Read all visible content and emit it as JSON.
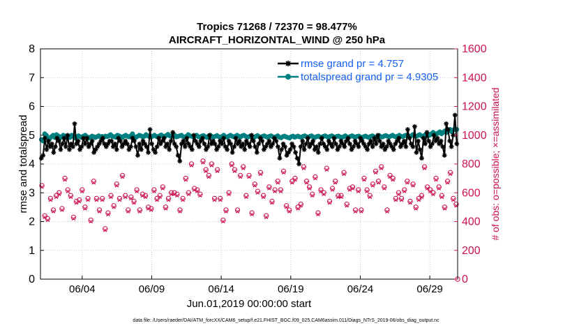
{
  "chart_data": {
    "type": "line",
    "title": "Tropics 71268 / 72370 = 98.477%",
    "subtitle": "AIRCRAFT_HORIZONTAL_WIND @ 250 hPa",
    "xlabel": "Jun.01,2019 00:00:00 start",
    "ylabel_left": "rmse and totalspread",
    "ylabel_right": "# of obs: o=possible; ×=assimilated",
    "ylim_left": [
      0,
      8
    ],
    "ylim_right": [
      0,
      1600
    ],
    "xlim_days": [
      1,
      31
    ],
    "xticks": [
      {
        "label": "06/04",
        "day": 4
      },
      {
        "label": "06/09",
        "day": 9
      },
      {
        "label": "06/14",
        "day": 14
      },
      {
        "label": "06/19",
        "day": 19
      },
      {
        "label": "06/24",
        "day": 24
      },
      {
        "label": "06/29",
        "day": 29
      }
    ],
    "yticks_left": [
      "0",
      "1",
      "2",
      "3",
      "4",
      "5",
      "6",
      "7",
      "8"
    ],
    "yticks_right": [
      "0",
      "200",
      "400",
      "600",
      "800",
      "1000",
      "1200",
      "1400",
      "1600"
    ],
    "legend": [
      {
        "name": "rmse grand pr = 4.757",
        "color": "#000000"
      },
      {
        "name": "totalspread grand pr = 4.9305",
        "color": "#008080"
      }
    ],
    "series": [
      {
        "name": "rmse",
        "axis": "left",
        "color": "#000000",
        "marker": "asterisk",
        "values": [
          4.2,
          4.3,
          4.9,
          4.5,
          4.8,
          4.6,
          4.7,
          4.4,
          4.6,
          4.9,
          4.8,
          4.5,
          4.7,
          4.9,
          4.6,
          5.0,
          4.5,
          4.7,
          4.6,
          5.4,
          4.7,
          4.8,
          4.5,
          4.6,
          4.9,
          4.7,
          4.9,
          4.6,
          4.7,
          4.8,
          4.4,
          4.5,
          4.6,
          4.7,
          4.8,
          4.9,
          4.7,
          4.6,
          4.7,
          4.8,
          4.8,
          4.6,
          4.7,
          4.5,
          4.9,
          4.8,
          4.6,
          4.7,
          4.8,
          4.7,
          4.5,
          4.6,
          4.9,
          4.8,
          4.6,
          4.3,
          4.7,
          4.5,
          4.8,
          4.7,
          4.6,
          4.4,
          5.2,
          4.7,
          4.5,
          4.4,
          4.6,
          4.9,
          4.7,
          4.8,
          4.9,
          4.6,
          4.7,
          4.5,
          4.8,
          5.1,
          4.7,
          4.6,
          4.3,
          4.1,
          4.7,
          4.8,
          4.6,
          4.9,
          4.7,
          4.6,
          4.5,
          5.0,
          4.8,
          4.7,
          4.6,
          4.8,
          4.9,
          4.7,
          4.5,
          4.6,
          5.0,
          4.7,
          4.8,
          4.7,
          4.5,
          4.6,
          4.8,
          4.7,
          4.9,
          4.6,
          4.5,
          4.8,
          4.7,
          4.4,
          4.6,
          4.9,
          4.7,
          4.8,
          4.6,
          4.7,
          4.5,
          4.8,
          4.7,
          4.6,
          5.0,
          4.8,
          4.6,
          4.4,
          4.7,
          4.9,
          4.8,
          4.5,
          4.6,
          4.7,
          4.8,
          4.6,
          4.7,
          4.9,
          4.8,
          4.6,
          4.2,
          4.5,
          4.7,
          4.6,
          4.3,
          4.4,
          4.5,
          4.7,
          4.6,
          4.4,
          4.2,
          4.0,
          4.6,
          4.8,
          4.5,
          4.7,
          4.9,
          4.6,
          4.7,
          4.8,
          4.5,
          4.6,
          4.4,
          4.7,
          4.9,
          4.7,
          4.6,
          4.5,
          4.8,
          4.7,
          4.6,
          4.9,
          4.7,
          4.5,
          4.6,
          4.8,
          4.7,
          4.6,
          4.8,
          4.9,
          4.7,
          4.5,
          4.6,
          4.8,
          4.7,
          4.6,
          4.9,
          4.8,
          4.7,
          4.6,
          4.5,
          4.7,
          4.8,
          4.6,
          4.9,
          4.7,
          5.0,
          4.8,
          4.6,
          4.7,
          4.5,
          4.6,
          4.8,
          4.7,
          4.6,
          4.5,
          4.7,
          4.8,
          4.9,
          4.6,
          4.7,
          4.8,
          4.6,
          5.2,
          4.9,
          4.7,
          4.6,
          5.3,
          4.4,
          4.8,
          4.5,
          4.2,
          4.9,
          4.7,
          5.1,
          4.8,
          4.6,
          4.7,
          5.0,
          4.8,
          4.9,
          4.7,
          4.8,
          4.6,
          4.3,
          5.4,
          5.2,
          4.8,
          4.6,
          5.0,
          5.7,
          4.7
        ]
      },
      {
        "name": "totalspread",
        "axis": "left",
        "color": "#008080",
        "marker": "circle",
        "values": [
          4.85,
          4.8,
          5.05,
          5.0,
          4.9,
          4.88,
          4.95,
          5.0,
          4.92,
          5.02,
          4.98,
          4.9,
          4.95,
          5.0,
          4.93,
          4.97,
          4.95,
          4.92,
          5.0,
          4.96,
          4.9,
          4.94,
          4.98,
          4.95,
          4.92,
          4.97,
          5.0,
          4.95,
          4.9,
          4.93,
          4.97,
          4.95,
          4.92,
          4.95,
          4.98,
          4.94,
          4.96,
          4.92,
          4.97,
          4.95,
          4.98,
          5.02,
          4.96,
          4.95,
          4.93,
          5.0,
          4.98,
          4.95,
          4.92,
          4.97,
          5.0,
          4.96,
          4.94,
          4.98,
          5.05,
          4.95,
          4.92,
          4.96,
          5.0,
          4.98,
          4.94,
          4.96,
          5.02,
          4.98,
          4.95,
          4.93,
          4.97,
          5.0,
          4.96,
          4.94,
          4.98,
          5.01,
          4.97,
          4.95,
          4.99,
          5.03,
          4.98,
          4.95,
          4.96,
          5.0,
          4.94,
          4.96,
          4.98,
          5.0,
          4.95,
          4.93,
          4.97,
          5.02,
          4.98,
          4.96,
          4.94,
          4.97,
          5.0,
          4.95,
          4.93,
          4.97,
          4.99,
          4.95,
          4.92,
          4.97,
          5.0,
          4.96,
          4.93,
          4.96,
          4.99,
          4.95,
          4.92,
          4.96,
          5.0,
          4.95,
          4.93,
          4.97,
          5.0,
          4.96,
          4.94,
          4.97,
          5.0,
          4.96,
          4.94,
          4.98,
          5.0,
          4.96,
          4.93,
          4.95,
          4.98,
          4.94,
          4.92,
          4.96,
          4.99,
          4.95,
          4.93,
          4.96,
          4.98,
          4.95,
          4.92,
          4.96,
          4.98,
          4.95,
          4.92,
          4.95,
          4.98,
          4.93,
          4.91,
          4.95,
          4.97,
          4.94,
          4.92,
          4.9,
          4.95,
          4.97,
          4.93,
          4.95,
          4.97,
          4.94,
          4.93,
          4.96,
          4.98,
          4.95,
          4.93,
          4.96,
          4.98,
          4.94,
          4.92,
          4.95,
          4.97,
          4.94,
          4.92,
          4.96,
          4.98,
          4.95,
          4.92,
          4.96,
          4.98,
          4.95,
          4.93,
          4.96,
          4.97,
          4.94,
          4.92,
          4.95,
          4.98,
          4.94,
          4.93,
          4.96,
          4.98,
          4.95,
          4.93,
          4.96,
          4.97,
          4.94,
          4.92,
          4.95,
          4.97,
          4.94,
          4.92,
          4.96,
          4.98,
          4.95,
          4.93,
          4.96,
          4.99,
          4.95,
          4.94,
          4.97,
          4.99,
          4.96,
          4.94,
          4.97,
          5.0,
          4.96,
          4.94,
          4.97,
          5.0,
          4.96,
          4.95,
          4.98,
          5.0,
          4.97,
          4.95,
          4.98,
          5.02,
          4.98,
          4.96,
          4.99,
          5.02,
          4.98,
          4.96,
          5.0,
          5.05,
          4.98,
          5.0,
          5.05,
          5.1,
          5.02,
          5.05,
          5.08,
          5.12,
          5.05,
          5.1,
          5.15,
          5.1,
          5.15,
          5.2,
          5.12,
          5.18,
          5.22,
          5.2
        ]
      },
      {
        "name": "# possible",
        "axis": "right",
        "color": "#cc1155",
        "marker": "o",
        "values": [
          650,
          440,
          420,
          560,
          480,
          580,
          600,
          490,
          700,
          620,
          580,
          430,
          540,
          550,
          620,
          500,
          560,
          410,
          680,
          560,
          480,
          560,
          350,
          460,
          580,
          510,
          660,
          560,
          720,
          580,
          480,
          570,
          540,
          620,
          480,
          590,
          580,
          500,
          490,
          620,
          560,
          580,
          640,
          500,
          560,
          600,
          600,
          590,
          480,
          560,
          700,
          600,
          800,
          630,
          620,
          590,
          820,
          760,
          720,
          800,
          560,
          760,
          560,
          410,
          480,
          600,
          800,
          760,
          480,
          720,
          780,
          580,
          720,
          460,
          660,
          610,
          740,
          580,
          440,
          640,
          540,
          620,
          680,
          620,
          750,
          510,
          480,
          680,
          700,
          500,
          520,
          780,
          680,
          640,
          590,
          710,
          460,
          620,
          600,
          770,
          540,
          630,
          680,
          580,
          580,
          740,
          520,
          630,
          640,
          480,
          620,
          480,
          700,
          620,
          580,
          660,
          750,
          680,
          780,
          640,
          480,
          720,
          700,
          560,
          600,
          560,
          620,
          680,
          540,
          660,
          500,
          560,
          580,
          780,
          640,
          620,
          600,
          700,
          640,
          580,
          500,
          680,
          740,
          560,
          520
        ]
      },
      {
        "name": "# assimilated",
        "axis": "right",
        "color": "#cc1155",
        "marker": "x",
        "values": [
          640,
          430,
          410,
          550,
          470,
          570,
          590,
          480,
          690,
          610,
          570,
          420,
          530,
          540,
          610,
          490,
          550,
          400,
          670,
          550,
          470,
          550,
          340,
          450,
          570,
          500,
          650,
          550,
          710,
          570,
          470,
          560,
          530,
          610,
          470,
          580,
          570,
          490,
          480,
          610,
          550,
          570,
          630,
          490,
          550,
          590,
          590,
          580,
          470,
          550,
          690,
          590,
          790,
          620,
          610,
          580,
          810,
          750,
          710,
          790,
          550,
          750,
          550,
          400,
          470,
          590,
          790,
          750,
          470,
          710,
          770,
          570,
          710,
          450,
          650,
          600,
          730,
          570,
          430,
          630,
          530,
          610,
          670,
          610,
          740,
          500,
          470,
          670,
          690,
          490,
          510,
          770,
          670,
          630,
          580,
          700,
          450,
          610,
          590,
          760,
          530,
          620,
          670,
          570,
          570,
          730,
          510,
          620,
          630,
          470,
          610,
          470,
          690,
          610,
          570,
          650,
          740,
          670,
          770,
          630,
          470,
          710,
          690,
          550,
          590,
          550,
          610,
          670,
          530,
          650,
          490,
          550,
          570,
          770,
          630,
          610,
          590,
          690,
          630,
          570,
          490,
          670,
          730,
          550,
          510
        ]
      }
    ]
  },
  "footer": "data file: /Users/raeder/DAI/ATM_forcXX/CAM6_setup/f.e21.FHIST_BGC.f09_025.CAM6assim.011/Diags_NTrS_2019-06/obs_diag_output.nc"
}
